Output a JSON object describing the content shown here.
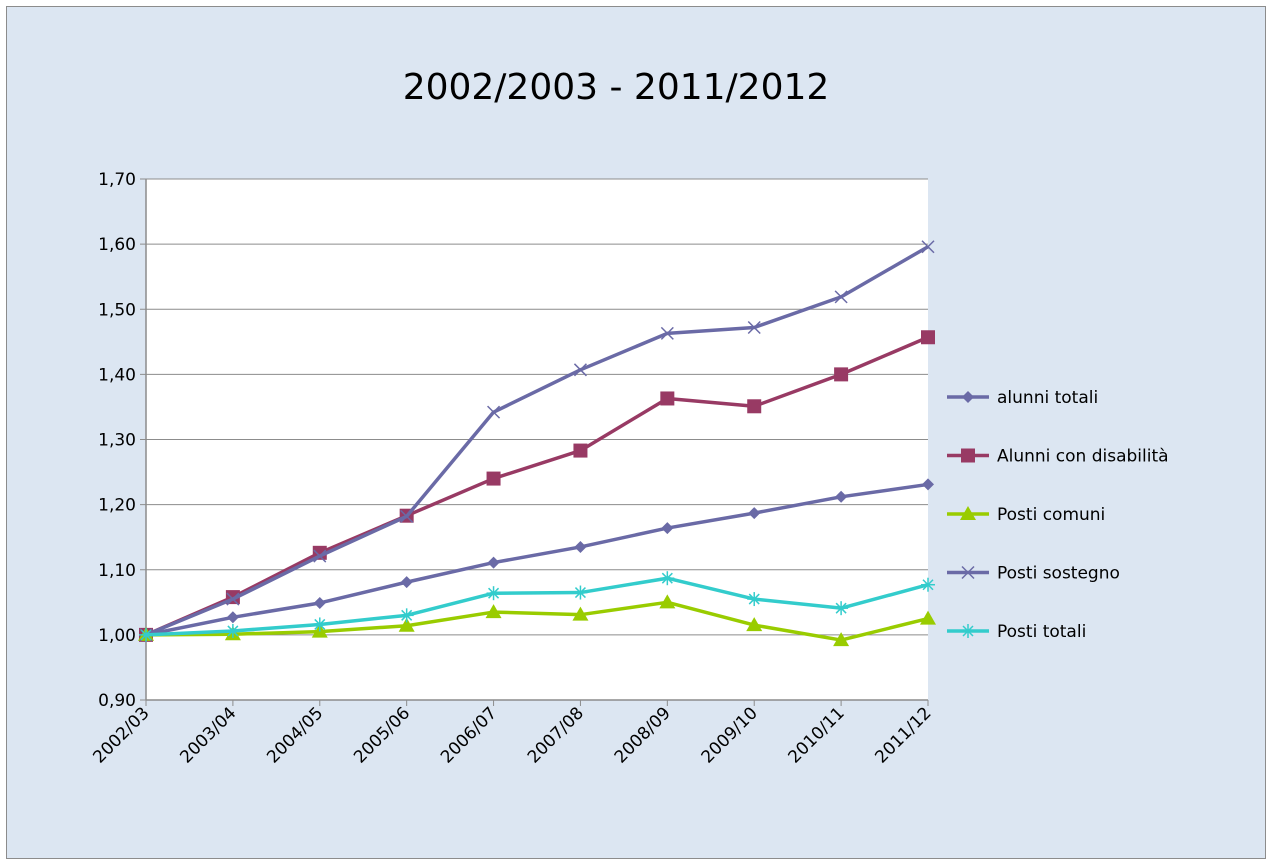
{
  "chart_data": {
    "type": "line",
    "title": "2002/2003 - 2011/2012",
    "xlabel": "",
    "ylabel": "",
    "categories": [
      "2002/03",
      "2003/04",
      "2004/05",
      "2005/06",
      "2006/07",
      "2007/08",
      "2008/09",
      "2009/10",
      "2010/11",
      "2011/12"
    ],
    "ylim": [
      0.9,
      1.7
    ],
    "yticks": [
      "0,90",
      "1,00",
      "1,10",
      "1,20",
      "1,30",
      "1,40",
      "1,50",
      "1,60",
      "1,70"
    ],
    "grid": true,
    "legend_position": "right",
    "series": [
      {
        "name": "alunni totali",
        "color": "#6a6aa6",
        "marker": "diamond",
        "values": [
          1.0,
          1.027,
          1.049,
          1.081,
          1.111,
          1.135,
          1.164,
          1.187,
          1.212,
          1.231
        ]
      },
      {
        "name": "Alunni con disabilità",
        "color": "#983a64",
        "marker": "square",
        "values": [
          1.0,
          1.058,
          1.126,
          1.183,
          1.24,
          1.283,
          1.363,
          1.351,
          1.4,
          1.457
        ]
      },
      {
        "name": "Posti comuni",
        "color": "#99cc00",
        "marker": "triangle",
        "values": [
          1.0,
          1.001,
          1.005,
          1.014,
          1.035,
          1.031,
          1.05,
          1.015,
          0.992,
          1.025
        ]
      },
      {
        "name": "Posti sostegno",
        "color": "#6a6aa6",
        "marker": "x",
        "values": [
          1.0,
          1.055,
          1.121,
          1.182,
          1.342,
          1.407,
          1.463,
          1.472,
          1.519,
          1.596
        ]
      },
      {
        "name": "Posti totali",
        "color": "#33cccc",
        "marker": "star",
        "values": [
          1.0,
          1.006,
          1.016,
          1.03,
          1.064,
          1.065,
          1.087,
          1.055,
          1.041,
          1.077
        ]
      }
    ]
  }
}
